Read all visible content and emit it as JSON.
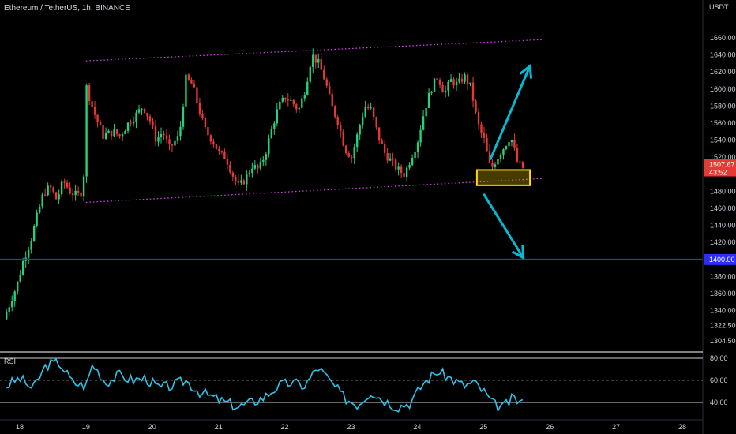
{
  "header": {
    "symbol_title": "Ethereum / TetherUS, 1h, BINANCE",
    "price_unit": "USDT"
  },
  "price_axis": {
    "ticks": [
      "1660.00",
      "1640.00",
      "1620.00",
      "1600.00",
      "1580.00",
      "1560.00",
      "1540.00",
      "1520.00",
      "1480.00",
      "1460.00",
      "1440.00",
      "1420.00",
      "1380.00",
      "1360.00",
      "1340.00",
      "1322.50",
      "1304.50"
    ],
    "current_price": "1507.67",
    "countdown": "43:52",
    "level_label": "1400.00"
  },
  "time_axis": {
    "ticks": [
      "18",
      "19",
      "20",
      "21",
      "22",
      "23",
      "24",
      "25",
      "26",
      "27",
      "28"
    ]
  },
  "rsi": {
    "label": "RSI",
    "ticks": [
      "80.00",
      "60.00",
      "40.00"
    ]
  },
  "colors": {
    "up": "#26d07c",
    "down": "#e53935",
    "channel": "#e040fb",
    "support_line": "#2a2eff",
    "arrow": "#00bcd4",
    "box": "#ffd600",
    "rsi_line": "#2ec3e8",
    "price_badge": "#e53935"
  },
  "chart_data": {
    "type": "candlestick",
    "timeframe": "1h",
    "ylim": [
      1295,
      1685
    ],
    "x_range_days": [
      18,
      28
    ],
    "current_price": 1507.67,
    "horizontal_level": 1400,
    "channel": {
      "upper": [
        [
          19.0,
          1633
        ],
        [
          25.9,
          1658
        ]
      ],
      "lower": [
        [
          19.0,
          1467
        ],
        [
          25.9,
          1495
        ]
      ]
    },
    "highlight_box": {
      "x": [
        24.9,
        25.7
      ],
      "y": [
        1487,
        1505
      ]
    },
    "arrows": [
      {
        "from": [
          25.1,
          1517
        ],
        "to": [
          25.7,
          1627
        ],
        "direction": "up"
      },
      {
        "from": [
          25.0,
          1477
        ],
        "to": [
          25.6,
          1402
        ],
        "direction": "down"
      }
    ],
    "price_path": [
      [
        17.8,
        1330
      ],
      [
        17.9,
        1350
      ],
      [
        18.0,
        1370
      ],
      [
        18.1,
        1400
      ],
      [
        18.2,
        1420
      ],
      [
        18.3,
        1450
      ],
      [
        18.4,
        1478
      ],
      [
        18.5,
        1485
      ],
      [
        18.6,
        1470
      ],
      [
        18.7,
        1492
      ],
      [
        18.8,
        1480
      ],
      [
        18.9,
        1475
      ],
      [
        19.0,
        1480
      ],
      [
        19.05,
        1602
      ],
      [
        19.15,
        1575
      ],
      [
        19.3,
        1545
      ],
      [
        19.45,
        1550
      ],
      [
        19.55,
        1545
      ],
      [
        19.7,
        1562
      ],
      [
        19.8,
        1570
      ],
      [
        19.9,
        1580
      ],
      [
        20.0,
        1565
      ],
      [
        20.1,
        1540
      ],
      [
        20.2,
        1550
      ],
      [
        20.3,
        1530
      ],
      [
        20.45,
        1545
      ],
      [
        20.55,
        1612
      ],
      [
        20.65,
        1605
      ],
      [
        20.75,
        1575
      ],
      [
        20.85,
        1550
      ],
      [
        20.95,
        1540
      ],
      [
        21.05,
        1525
      ],
      [
        21.15,
        1520
      ],
      [
        21.25,
        1500
      ],
      [
        21.35,
        1485
      ],
      [
        21.45,
        1495
      ],
      [
        21.55,
        1510
      ],
      [
        21.65,
        1505
      ],
      [
        21.75,
        1525
      ],
      [
        21.85,
        1555
      ],
      [
        21.95,
        1580
      ],
      [
        22.05,
        1590
      ],
      [
        22.15,
        1585
      ],
      [
        22.25,
        1575
      ],
      [
        22.35,
        1600
      ],
      [
        22.45,
        1640
      ],
      [
        22.55,
        1630
      ],
      [
        22.65,
        1610
      ],
      [
        22.75,
        1580
      ],
      [
        22.85,
        1560
      ],
      [
        22.95,
        1530
      ],
      [
        23.05,
        1520
      ],
      [
        23.15,
        1550
      ],
      [
        23.25,
        1580
      ],
      [
        23.35,
        1575
      ],
      [
        23.45,
        1545
      ],
      [
        23.55,
        1525
      ],
      [
        23.65,
        1515
      ],
      [
        23.75,
        1505
      ],
      [
        23.85,
        1500
      ],
      [
        23.95,
        1520
      ],
      [
        24.05,
        1540
      ],
      [
        24.15,
        1575
      ],
      [
        24.25,
        1600
      ],
      [
        24.35,
        1615
      ],
      [
        24.45,
        1595
      ],
      [
        24.55,
        1610
      ],
      [
        24.65,
        1605
      ],
      [
        24.75,
        1615
      ],
      [
        24.85,
        1602
      ],
      [
        24.95,
        1560
      ],
      [
        25.05,
        1540
      ],
      [
        25.15,
        1505
      ],
      [
        25.25,
        1520
      ],
      [
        25.35,
        1532
      ],
      [
        25.45,
        1545
      ],
      [
        25.55,
        1515
      ],
      [
        25.62,
        1507.67
      ]
    ],
    "rsi_ylim": [
      25,
      90
    ],
    "rsi_path": [
      [
        17.8,
        55
      ],
      [
        18.0,
        62
      ],
      [
        18.2,
        52
      ],
      [
        18.4,
        74
      ],
      [
        18.6,
        76
      ],
      [
        18.8,
        58
      ],
      [
        19.0,
        55
      ],
      [
        19.1,
        75
      ],
      [
        19.3,
        58
      ],
      [
        19.5,
        65
      ],
      [
        19.7,
        60
      ],
      [
        19.9,
        62
      ],
      [
        20.1,
        53
      ],
      [
        20.3,
        55
      ],
      [
        20.5,
        60
      ],
      [
        20.7,
        50
      ],
      [
        20.9,
        45
      ],
      [
        21.1,
        40
      ],
      [
        21.3,
        36
      ],
      [
        21.5,
        40
      ],
      [
        21.7,
        45
      ],
      [
        21.9,
        55
      ],
      [
        22.1,
        58
      ],
      [
        22.3,
        55
      ],
      [
        22.5,
        72
      ],
      [
        22.7,
        58
      ],
      [
        22.9,
        44
      ],
      [
        23.1,
        38
      ],
      [
        23.3,
        50
      ],
      [
        23.5,
        42
      ],
      [
        23.7,
        36
      ],
      [
        23.9,
        40
      ],
      [
        24.1,
        58
      ],
      [
        24.3,
        68
      ],
      [
        24.5,
        62
      ],
      [
        24.7,
        55
      ],
      [
        24.85,
        58
      ],
      [
        25.0,
        50
      ],
      [
        25.15,
        38
      ],
      [
        25.3,
        36
      ],
      [
        25.45,
        44
      ],
      [
        25.62,
        38
      ]
    ]
  }
}
